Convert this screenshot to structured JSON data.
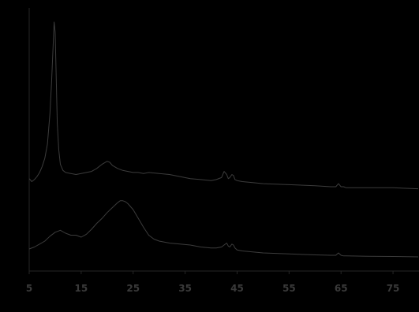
{
  "chart_data": {
    "type": "line",
    "title": "",
    "xlabel": "",
    "ylabel": "",
    "xlim": [
      5,
      80
    ],
    "ylim": [
      0,
      100
    ],
    "x_ticks": [
      "5",
      "15",
      "25",
      "35",
      "45",
      "55",
      "65",
      "75"
    ],
    "x_tick_values": [
      5,
      15,
      25,
      35,
      45,
      55,
      65,
      75
    ],
    "grid": false,
    "legend": "none",
    "line_color": "#3c3c3c",
    "series": [
      {
        "x": [
          5,
          5.5,
          6,
          6.5,
          7,
          7.5,
          8,
          8.5,
          9,
          9.3,
          9.6,
          9.8,
          10,
          10.2,
          10.4,
          10.7,
          11,
          11.5,
          12,
          13,
          14,
          15,
          16,
          17,
          18,
          19,
          20,
          20.5,
          21,
          22,
          23,
          24,
          25,
          26,
          27,
          28,
          30,
          32,
          34,
          36,
          38,
          40,
          41,
          42,
          42.5,
          43,
          43.3,
          43.6,
          44,
          44.3,
          44.6,
          45,
          46,
          48,
          50,
          55,
          60,
          63,
          64,
          64.5,
          65,
          65.5,
          66,
          70,
          75,
          80
        ],
        "y": [
          23,
          21.5,
          22.5,
          24,
          26,
          29,
          33,
          40,
          55,
          70,
          88,
          100,
          95,
          72,
          50,
          37,
          30,
          27,
          26,
          25.5,
          25,
          25.5,
          26,
          26.5,
          28,
          30,
          31.5,
          31,
          29.5,
          28,
          27,
          26.5,
          26,
          26,
          25.5,
          26,
          25.5,
          25,
          24,
          23,
          22.5,
          22,
          22.5,
          23.5,
          26.5,
          25,
          23,
          23.5,
          25,
          24.5,
          22.5,
          22,
          21.5,
          21,
          20.5,
          20,
          19.5,
          19,
          19,
          20.5,
          19,
          19,
          18.5,
          18.5,
          18.5,
          18
        ]
      },
      {
        "x": [
          5,
          6,
          7,
          8,
          9,
          10,
          11,
          12,
          13,
          14,
          15,
          16,
          17,
          18,
          19,
          20,
          21,
          22,
          22.5,
          23,
          23.5,
          24,
          25,
          26,
          27,
          28,
          29,
          30,
          32,
          34,
          36,
          38,
          40,
          41,
          42,
          42.5,
          43,
          43.3,
          43.6,
          44,
          44.3,
          44.6,
          45,
          46,
          48,
          50,
          55,
          60,
          63,
          64,
          64.5,
          65,
          65.5,
          66,
          70,
          75,
          80
        ],
        "y": [
          6,
          7,
          8.5,
          10,
          12.5,
          14.5,
          15.5,
          14,
          13,
          13,
          12,
          13.5,
          16,
          19,
          21.5,
          24.5,
          27,
          29.5,
          30.5,
          30.5,
          30,
          29,
          26,
          21.5,
          17,
          13,
          11,
          10,
          9,
          8.5,
          8,
          7,
          6.5,
          6.5,
          7,
          8,
          9,
          7.5,
          7,
          8.5,
          8,
          6.5,
          5.5,
          5,
          4.5,
          4,
          3.5,
          3,
          2.8,
          2.8,
          4,
          2.8,
          2.5,
          2.5,
          2.3,
          2.2,
          2
        ]
      }
    ]
  }
}
